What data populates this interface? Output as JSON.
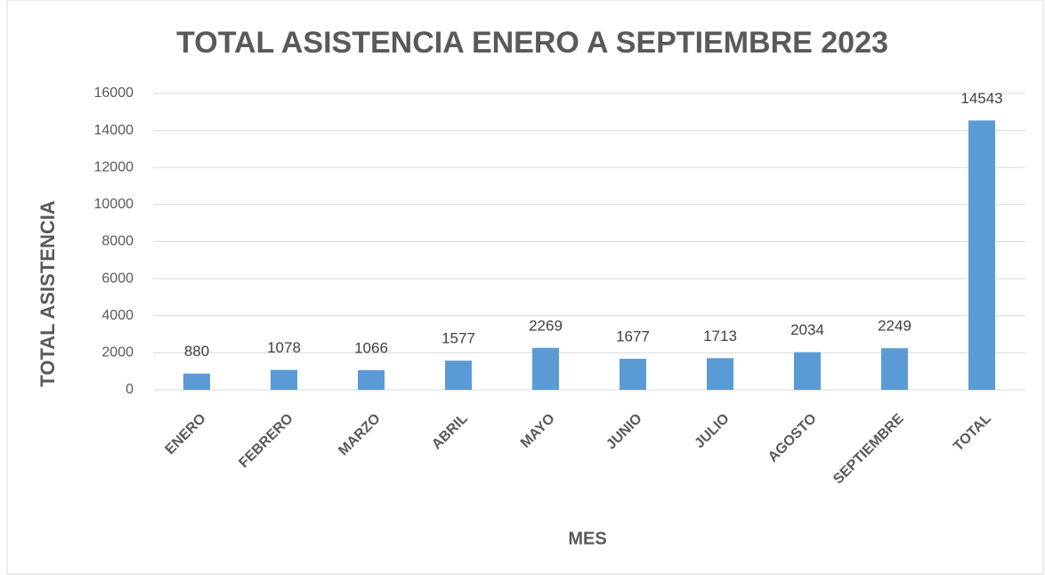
{
  "chart_data": {
    "type": "bar",
    "title": "TOTAL ASISTENCIA ENERO A SEPTIEMBRE 2023",
    "x_label": "MES",
    "y_label": "TOTAL ASISTENCIA",
    "categories": [
      "ENERO",
      "FEBRERO",
      "MARZO",
      "ABRIL",
      "MAYO",
      "JUNIO",
      "JULIO",
      "AGOSTO",
      "SEPTIEMBRE",
      "TOTAL"
    ],
    "values": [
      880,
      1078,
      1066,
      1577,
      2269,
      1677,
      1713,
      2034,
      2249,
      14543
    ],
    "color": "#5b9bd5",
    "ylim": [
      0,
      16000
    ],
    "yticks": [
      0,
      2000,
      4000,
      6000,
      8000,
      10000,
      12000,
      14000,
      16000
    ],
    "grid": true
  }
}
